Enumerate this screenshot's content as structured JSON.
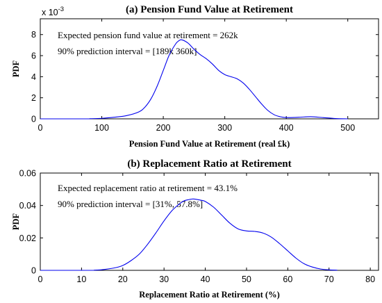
{
  "chart_data": [
    {
      "type": "line",
      "title": "(a) Pension Fund Value at Retirement",
      "xlabel": "Pension Fund Value at Retirement (real £k)",
      "ylabel": "PDF",
      "exponent_label": "x 10",
      "exponent_power": "-3",
      "xlim": [
        0,
        550
      ],
      "ylim": [
        0,
        0.0095
      ],
      "xticks": [
        "0",
        "100",
        "200",
        "300",
        "400",
        "500"
      ],
      "yticks": [
        "0",
        "2",
        "4",
        "6",
        "8"
      ],
      "annotations": [
        "Expected pension fund value at retirement = 262k",
        "90% prediction interval = [189k 360k]"
      ],
      "series": [
        {
          "color": "#0000ee",
          "x": [
            80,
            100,
            120,
            140,
            160,
            170,
            180,
            190,
            200,
            210,
            220,
            225,
            230,
            240,
            250,
            260,
            270,
            280,
            290,
            300,
            310,
            320,
            330,
            340,
            350,
            360,
            370,
            380,
            390,
            400,
            420,
            440,
            460,
            480,
            500
          ],
          "y": [
            1e-05,
            5e-05,
            0.00015,
            0.0003,
            0.00065,
            0.0011,
            0.0019,
            0.0031,
            0.0046,
            0.0061,
            0.0071,
            0.0074,
            0.0075,
            0.0072,
            0.0066,
            0.0061,
            0.0057,
            0.0052,
            0.0046,
            0.0042,
            0.004,
            0.0038,
            0.0034,
            0.0028,
            0.0021,
            0.0014,
            0.0008,
            0.0004,
            0.0002,
            0.00012,
            0.00015,
            0.0002,
            0.00012,
            3e-05,
            0.0
          ]
        }
      ]
    },
    {
      "type": "line",
      "title": "(b) Replacement Ratio at Retirement",
      "xlabel": "Replacement Ratio at Retirement (%)",
      "ylabel": "PDF",
      "xlim": [
        0,
        82
      ],
      "ylim": [
        0,
        0.06
      ],
      "xticks": [
        "0",
        "10",
        "20",
        "30",
        "40",
        "50",
        "60",
        "70",
        "80"
      ],
      "yticks": [
        "0",
        "0.02",
        "0.04",
        "0.06"
      ],
      "annotations": [
        "Expected replacement ratio at retirement = 43.1%",
        "90% prediction interval = [31%, 57.8%]"
      ],
      "series": [
        {
          "color": "#0000ee",
          "x": [
            13,
            15,
            18,
            20,
            22,
            24,
            26,
            28,
            30,
            32,
            34,
            35,
            36,
            37,
            38,
            39,
            40,
            42,
            44,
            46,
            48,
            50,
            52,
            54,
            56,
            58,
            60,
            62,
            64,
            66,
            68,
            70,
            72
          ],
          "y": [
            0.0001,
            0.0004,
            0.0015,
            0.003,
            0.006,
            0.01,
            0.016,
            0.023,
            0.0305,
            0.037,
            0.0415,
            0.043,
            0.0436,
            0.044,
            0.0437,
            0.0432,
            0.0425,
            0.039,
            0.034,
            0.029,
            0.0255,
            0.0243,
            0.024,
            0.023,
            0.0205,
            0.0165,
            0.012,
            0.0075,
            0.004,
            0.002,
            0.0008,
            0.0003,
            0.0001
          ]
        }
      ]
    }
  ]
}
